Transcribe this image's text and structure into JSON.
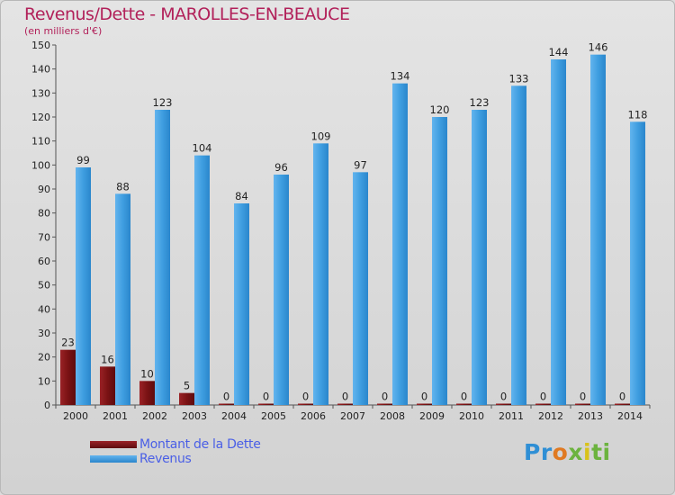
{
  "header": {
    "title": "Revenus/Dette - MAROLLES-EN-BEAUCE",
    "subtitle": "(en milliers d'€)"
  },
  "colors": {
    "debt": "#7a1214",
    "revenue": "#3f9ee0",
    "title": "#b2215a",
    "legend_text": "#4a5fe6"
  },
  "legend": {
    "items": [
      {
        "label": "Montant de la Dette",
        "color": "#7a1214"
      },
      {
        "label": "Revenus",
        "color": "#3f9ee0"
      }
    ]
  },
  "logo": {
    "text": "Proxiti"
  },
  "chart_data": {
    "type": "bar",
    "title": "Revenus/Dette - MAROLLES-EN-BEAUCE",
    "subtitle": "(en milliers d'€)",
    "categories": [
      "2000",
      "2001",
      "2002",
      "2003",
      "2004",
      "2005",
      "2006",
      "2007",
      "2008",
      "2009",
      "2010",
      "2011",
      "2012",
      "2013",
      "2014"
    ],
    "series": [
      {
        "name": "Montant de la Dette",
        "values": [
          23,
          16,
          10,
          5,
          0,
          0,
          0,
          0,
          0,
          0,
          0,
          0,
          0,
          0,
          0
        ]
      },
      {
        "name": "Revenus",
        "values": [
          99,
          88,
          123,
          104,
          84,
          96,
          109,
          97,
          134,
          120,
          123,
          133,
          144,
          146,
          118
        ]
      }
    ],
    "ylim": [
      0,
      150
    ],
    "yticks": [
      0,
      10,
      20,
      30,
      40,
      50,
      60,
      70,
      80,
      90,
      100,
      110,
      120,
      130,
      140,
      150
    ],
    "grid": false,
    "legend_position": "bottom-left"
  }
}
